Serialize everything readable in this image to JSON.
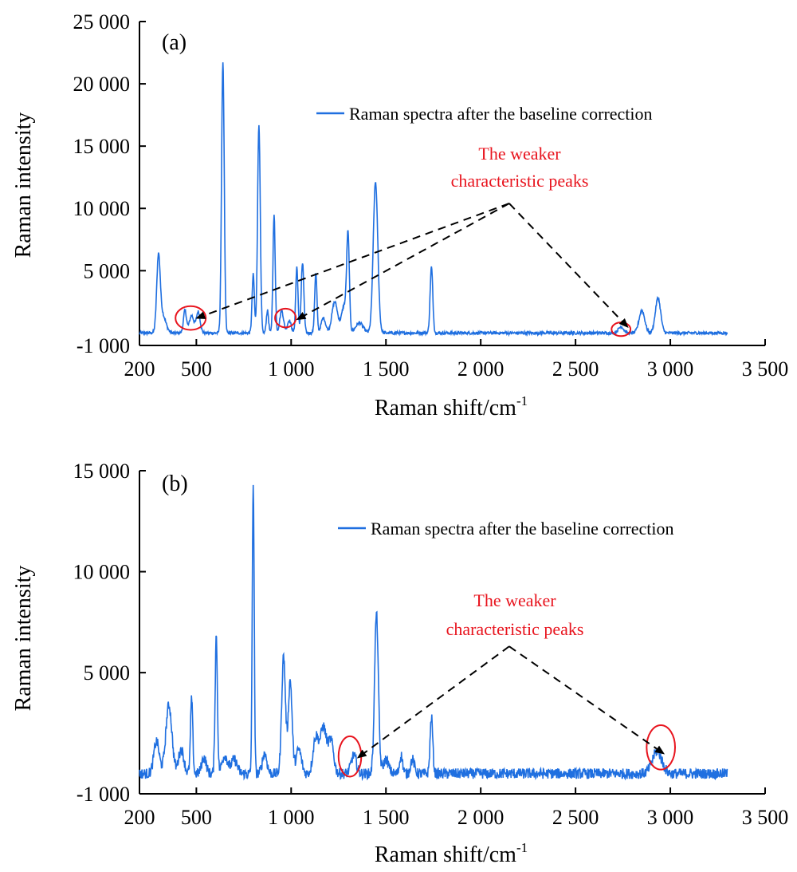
{
  "chart_data": [
    {
      "type": "line",
      "panel_label": "(a)",
      "xlabel": "Raman shift/cm",
      "xlabel_sup": "-1",
      "ylabel": "Raman intensity",
      "xlim": [
        200,
        3500
      ],
      "ylim": [
        -1000,
        25000
      ],
      "xticks": [
        200,
        500,
        1000,
        1500,
        2000,
        2500,
        3000,
        3500
      ],
      "xtick_labels": [
        "200",
        "500",
        "1 000",
        "1 500",
        "2 000",
        "2 500",
        "3 000",
        "3 500"
      ],
      "yticks": [
        -1000,
        5000,
        10000,
        15000,
        20000,
        25000
      ],
      "ytick_labels": [
        "-1 000",
        "5 000",
        "10 000",
        "15 000",
        "20 000",
        "25 000"
      ],
      "color": "#1f6fe0",
      "series": [
        {
          "name": "Raman spectra after the baseline correction",
          "x_range": [
            200,
            3300
          ],
          "baseline": 0,
          "noise": 120,
          "peaks": [
            [
              300,
              5600,
              9
            ],
            [
              320,
              1500,
              18
            ],
            [
              440,
              1800,
              8
            ],
            [
              475,
              1400,
              12
            ],
            [
              510,
              1700,
              10
            ],
            [
              640,
              21800,
              7
            ],
            [
              800,
              4700,
              6
            ],
            [
              830,
              16800,
              7
            ],
            [
              875,
              1800,
              6
            ],
            [
              910,
              9400,
              6
            ],
            [
              950,
              1800,
              10
            ],
            [
              990,
              1000,
              10
            ],
            [
              1030,
              5300,
              6
            ],
            [
              1060,
              5600,
              7
            ],
            [
              1130,
              4800,
              6
            ],
            [
              1170,
              1200,
              12
            ],
            [
              1230,
              2500,
              15
            ],
            [
              1280,
              2200,
              14
            ],
            [
              1300,
              7400,
              7
            ],
            [
              1360,
              800,
              20
            ],
            [
              1445,
              12100,
              12
            ],
            [
              1740,
              5300,
              7
            ],
            [
              2740,
              500,
              14
            ],
            [
              2850,
              1800,
              15
            ],
            [
              2935,
              2800,
              14
            ]
          ]
        }
      ],
      "annotation": {
        "text_lines": [
          "The weaker",
          "characteristic peaks"
        ],
        "origin": [
          2150,
          10400
        ],
        "targets": [
          [
            470,
            1200
          ],
          [
            1000,
            1100
          ],
          [
            2740,
            500
          ]
        ],
        "circles": [
          [
            470,
            1200,
            80,
            950
          ],
          [
            970,
            1200,
            55,
            750
          ],
          [
            2740,
            300,
            50,
            550
          ]
        ]
      }
    },
    {
      "type": "line",
      "panel_label": "(b)",
      "xlabel": "Raman shift/cm",
      "xlabel_sup": "-1",
      "ylabel": "Raman intensity",
      "xlim": [
        200,
        3500
      ],
      "ylim": [
        -1000,
        15000
      ],
      "xticks": [
        200,
        500,
        1000,
        1500,
        2000,
        2500,
        3000,
        3500
      ],
      "xtick_labels": [
        "200",
        "500",
        "1 000",
        "1 500",
        "2 000",
        "2 500",
        "3 000",
        "3 500"
      ],
      "yticks": [
        -1000,
        5000,
        10000,
        15000
      ],
      "ytick_labels": [
        "-1 000",
        "5 000",
        "10 000",
        "15 000"
      ],
      "color": "#1f6fe0",
      "series": [
        {
          "name": "Raman spectra after the baseline correction",
          "x_range": [
            200,
            3300
          ],
          "baseline": 0,
          "noise": 260,
          "peaks": [
            [
              290,
              1600,
              14
            ],
            [
              355,
              3400,
              16
            ],
            [
              420,
              1200,
              14
            ],
            [
              475,
              3700,
              6
            ],
            [
              540,
              800,
              12
            ],
            [
              605,
              6800,
              6
            ],
            [
              650,
              900,
              15
            ],
            [
              700,
              700,
              15
            ],
            [
              800,
              14500,
              5
            ],
            [
              860,
              1000,
              12
            ],
            [
              960,
              5800,
              10
            ],
            [
              995,
              4600,
              10
            ],
            [
              1040,
              1200,
              14
            ],
            [
              1130,
              1800,
              14
            ],
            [
              1170,
              2300,
              16
            ],
            [
              1210,
              1600,
              14
            ],
            [
              1330,
              900,
              14
            ],
            [
              1450,
              7900,
              10
            ],
            [
              1500,
              700,
              14
            ],
            [
              1580,
              900,
              8
            ],
            [
              1640,
              700,
              10
            ],
            [
              1740,
              2800,
              7
            ],
            [
              2930,
              1100,
              25
            ]
          ]
        }
      ],
      "annotation": {
        "text_lines": [
          "The weaker",
          "characteristic peaks"
        ],
        "origin": [
          2150,
          6300
        ],
        "targets": [
          [
            1320,
            800
          ],
          [
            2930,
            1000
          ]
        ],
        "circles": [
          [
            1310,
            850,
            60,
            1000
          ],
          [
            2950,
            1300,
            75,
            1100
          ]
        ]
      }
    }
  ]
}
